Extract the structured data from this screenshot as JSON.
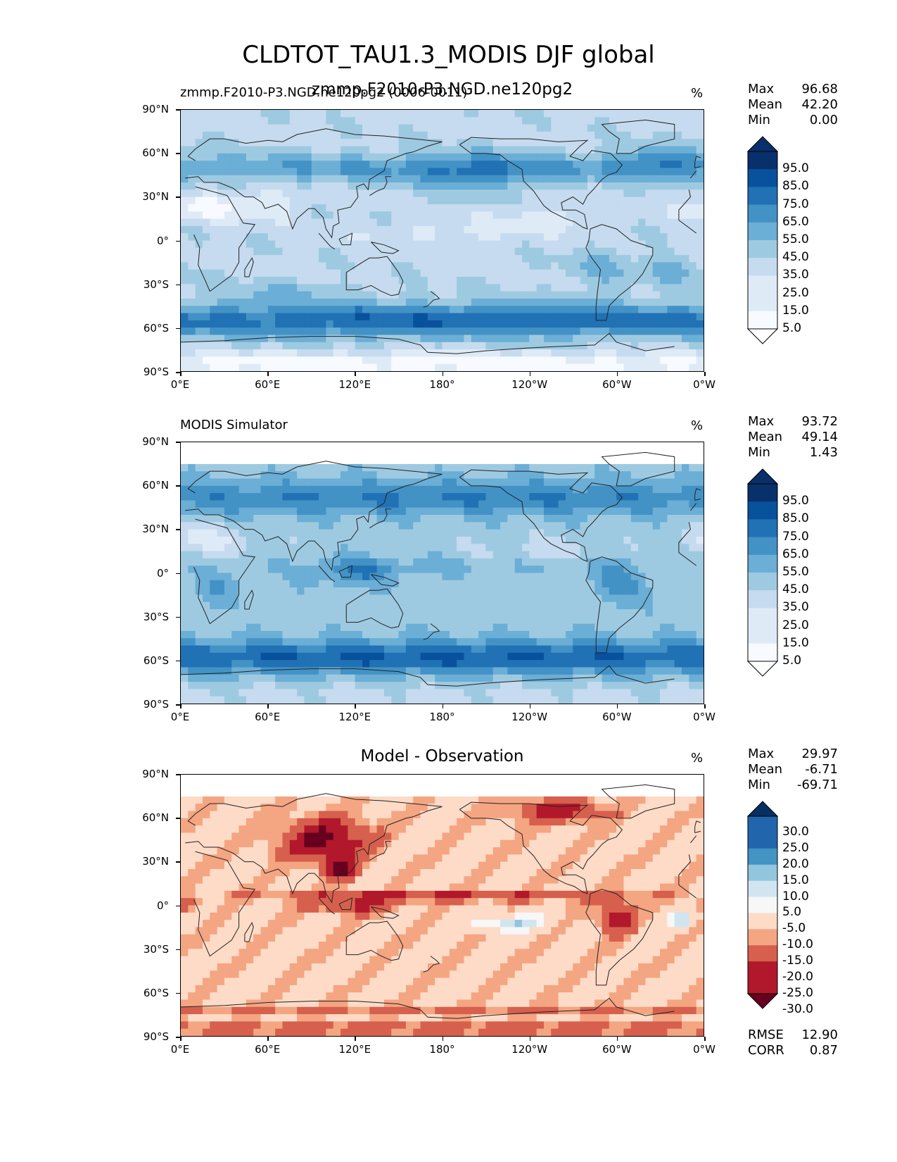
{
  "title": "CLDTOT_TAU1.3_MODIS DJF global",
  "lat_ticks": [
    "90°N",
    "60°N",
    "30°N",
    "0°",
    "30°S",
    "60°S",
    "90°S"
  ],
  "lon_ticks": [
    "0°E",
    "60°E",
    "120°E",
    "180°",
    "120°W",
    "60°W",
    "0°W"
  ],
  "colormaps": {
    "blues": [
      "#f7fbff",
      "#deebf7",
      "#c6dbef",
      "#9ecae1",
      "#6baed6",
      "#4292c6",
      "#2171b5",
      "#08519c",
      "#08306b"
    ],
    "rdbu": [
      "#67001f",
      "#b2182b",
      "#d6604d",
      "#f4a582",
      "#fddbc7",
      "#f7f7f7",
      "#d1e5f0",
      "#92c5de",
      "#4393c3",
      "#2166ac",
      "#053061"
    ]
  },
  "panels": [
    {
      "title_left": "zmmp.F2010-P3.NGD.ne120pg2 (0006-0011)",
      "title_center": "",
      "title_overlay": "zmmp.F2010-P3.NGD.ne120pg2",
      "units": "%",
      "stats": [
        {
          "label": "Max",
          "value": "96.68"
        },
        {
          "label": "Mean",
          "value": "42.20"
        },
        {
          "label": "Min",
          "value": "0.00"
        }
      ],
      "colorbar_labels": [
        "95.0",
        "85.0",
        "75.0",
        "65.0",
        "55.0",
        "45.0",
        "35.0",
        "25.0",
        "15.0",
        "5.0"
      ],
      "field": "model"
    },
    {
      "title_left": "MODIS Simulator",
      "title_center": "",
      "title_overlay": "",
      "units": "%",
      "stats": [
        {
          "label": "Max",
          "value": "93.72"
        },
        {
          "label": "Mean",
          "value": "49.14"
        },
        {
          "label": "Min",
          "value": "1.43"
        }
      ],
      "colorbar_labels": [
        "95.0",
        "85.0",
        "75.0",
        "65.0",
        "55.0",
        "45.0",
        "35.0",
        "25.0",
        "15.0",
        "5.0"
      ],
      "field": "obs"
    },
    {
      "title_left": "",
      "title_center": "Model - Observation",
      "title_overlay": "",
      "units": "%",
      "stats": [
        {
          "label": "Max",
          "value": "29.97"
        },
        {
          "label": "Mean",
          "value": "-6.71"
        },
        {
          "label": "Min",
          "value": "-69.71"
        }
      ],
      "colorbar_labels": [
        "30.0",
        "25.0",
        "20.0",
        "15.0",
        "10.0",
        "5.0",
        "-5.0",
        "-10.0",
        "-15.0",
        "-20.0",
        "-25.0",
        "-30.0"
      ],
      "field": "diff",
      "metrics": [
        {
          "label": "RMSE",
          "value": "12.90"
        },
        {
          "label": "CORR",
          "value": "0.87"
        }
      ]
    }
  ]
}
